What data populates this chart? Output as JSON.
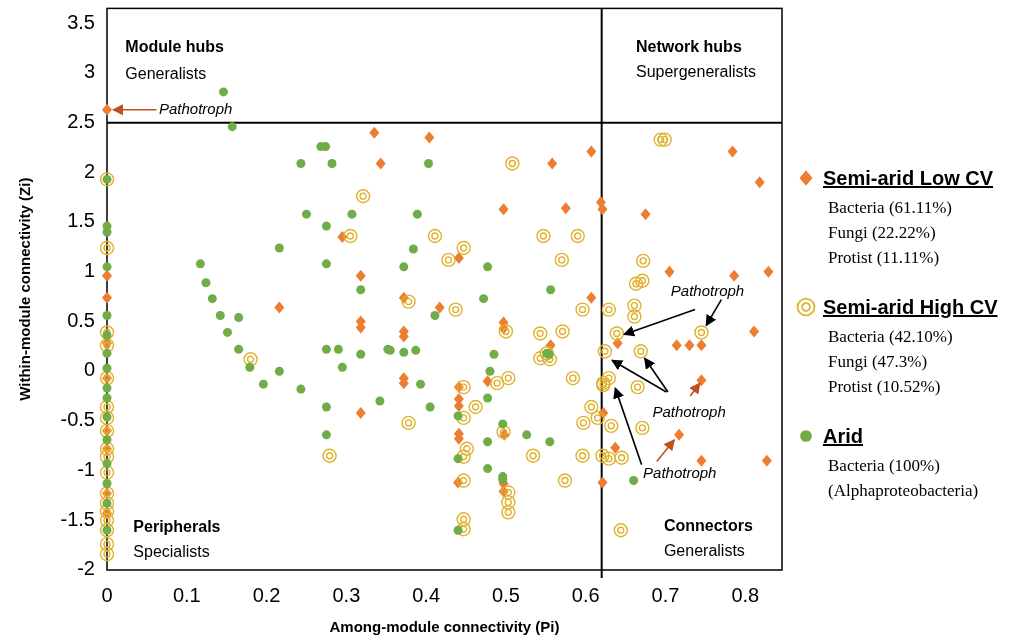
{
  "chart_data": {
    "type": "scatter",
    "xlabel": "Among-module connectivity (Pi)",
    "ylabel": "Within-module connectivity (Zi)",
    "xlim": [
      0,
      0.846
    ],
    "ylim": [
      -2,
      3.65
    ],
    "xticks": [
      0,
      0.1,
      0.2,
      0.3,
      0.4,
      0.5,
      0.6,
      0.7,
      0.8
    ],
    "yticks": [
      -2,
      -1.5,
      -1,
      -0.5,
      0,
      0.5,
      1,
      1.5,
      2,
      2.5,
      3,
      3.5
    ],
    "legend": "right",
    "grid": false,
    "ref_lines": [
      {
        "axis": "x",
        "value": 0.62,
        "color": "#000000"
      },
      {
        "axis": "y",
        "value": 2.5,
        "color": "#000000"
      }
    ],
    "series": [
      {
        "name": "Semi-arid Low CV",
        "color": "#ed7d31",
        "x": [
          0,
          0.335,
          0.343,
          0.295,
          0.318,
          0.216,
          0,
          0,
          0.404,
          0.558,
          0.607,
          0.784,
          0.818,
          0.497,
          0.575,
          0.619,
          0.621,
          0.675,
          0.441,
          0.705,
          0.786,
          0.829,
          0.372,
          0.417,
          0.607,
          0.372,
          0.372,
          0.497,
          0.497,
          0.556,
          0.372,
          0.372,
          0.477,
          0.441,
          0.745,
          0.811,
          0.714,
          0.73,
          0.745,
          0.64,
          0.441,
          0.441,
          0.622,
          0.498,
          0.441,
          0.441,
          0.637,
          0.717,
          0.745,
          0.827,
          0.497,
          0.497,
          0.44,
          0.621,
          0.318,
          0.318,
          0.318,
          0,
          0,
          0,
          0,
          0,
          0
        ],
        "values": [
          2.63,
          2.4,
          2.09,
          1.35,
          0.96,
          0.64,
          0.96,
          0.74,
          2.35,
          2.09,
          2.21,
          2.21,
          1.9,
          1.63,
          1.64,
          1.7,
          1.63,
          1.58,
          1.14,
          1,
          0.96,
          1,
          0.74,
          0.64,
          0.74,
          0.4,
          0.35,
          0.49,
          0.43,
          0.26,
          -0.07,
          -0.12,
          -0.1,
          -0.16,
          -0.09,
          0.4,
          0.26,
          0.26,
          0.26,
          0.28,
          -0.28,
          -0.35,
          -0.42,
          -0.64,
          -0.63,
          -0.68,
          -0.77,
          -0.64,
          -0.9,
          -0.9,
          -1.13,
          -1.21,
          -1.12,
          -1.12,
          0.5,
          0.44,
          -0.42,
          0.28,
          -0.07,
          -0.6,
          -0.78,
          -1.23,
          -1.43
        ]
      },
      {
        "name": "Semi-arid High CV",
        "color": "#e0b22e",
        "x": [
          0,
          0,
          0.321,
          0.305,
          0.508,
          0.694,
          0.699,
          0.411,
          0.447,
          0.428,
          0.547,
          0.59,
          0.57,
          0.672,
          0.663,
          0.671,
          0.378,
          0.437,
          0.596,
          0.629,
          0.661,
          0.661,
          0.5,
          0.543,
          0.571,
          0.543,
          0.551,
          0.555,
          0.489,
          0.503,
          0.447,
          0.584,
          0.622,
          0.622,
          0.629,
          0.665,
          0.639,
          0.745,
          0.624,
          0.669,
          0.462,
          0.447,
          0.378,
          0.607,
          0.597,
          0.615,
          0.632,
          0.671,
          0.497,
          0.451,
          0.447,
          0.534,
          0.596,
          0.621,
          0.629,
          0.645,
          0.503,
          0.503,
          0.503,
          0.447,
          0.574,
          0.447,
          0.447,
          0.644,
          0.18,
          0.279,
          0,
          0,
          0,
          0,
          0,
          0,
          0,
          0,
          0,
          0,
          0,
          0,
          0,
          0,
          0,
          0
        ],
        "values": [
          1.93,
          1.24,
          1.76,
          1.36,
          2.09,
          2.33,
          2.33,
          1.36,
          1.24,
          1.12,
          1.36,
          1.36,
          1.12,
          1.11,
          0.88,
          0.91,
          0.7,
          0.62,
          0.62,
          0.62,
          0.66,
          0.55,
          0.4,
          0.38,
          0.4,
          0.13,
          0.18,
          0.12,
          -0.12,
          -0.07,
          -0.16,
          -0.07,
          -0.12,
          -0.14,
          -0.07,
          -0.16,
          0.38,
          0.39,
          0.2,
          0.2,
          -0.36,
          -0.47,
          -0.52,
          -0.36,
          -0.52,
          -0.47,
          -0.55,
          -0.57,
          -0.61,
          -0.78,
          -0.86,
          -0.85,
          -0.85,
          -0.85,
          -0.88,
          -0.87,
          -1.22,
          -1.32,
          -1.42,
          -1.1,
          -1.1,
          -1.49,
          -1.59,
          -1.6,
          0.12,
          -0.85,
          0.39,
          0.26,
          -0.07,
          -0.36,
          -0.47,
          -0.6,
          -0.78,
          -0.86,
          -1.02,
          -1.23,
          -1.33,
          -1.41,
          -1.5,
          -1.6,
          -1.74,
          -1.84
        ]
      },
      {
        "name": "Arid",
        "color": "#70ad47",
        "x": [
          0.146,
          0.157,
          0,
          0.268,
          0.274,
          0.243,
          0.282,
          0.25,
          0.307,
          0.275,
          0.216,
          0.117,
          0.275,
          0.318,
          0.124,
          0.132,
          0.142,
          0.165,
          0,
          0,
          0,
          0,
          0.403,
          0.389,
          0.384,
          0.372,
          0.477,
          0.556,
          0.472,
          0.411,
          0.355,
          0.372,
          0.387,
          0.485,
          0.48,
          0.551,
          0.554,
          0.393,
          0.405,
          0.477,
          0.44,
          0.496,
          0.526,
          0.555,
          0.477,
          0.44,
          0.477,
          0.496,
          0.496,
          0.66,
          0.44,
          0.151,
          0.165,
          0.179,
          0.216,
          0.196,
          0.243,
          0.275,
          0.29,
          0.295,
          0.318,
          0.352,
          0.275,
          0.342,
          0.275,
          0,
          0,
          0,
          0,
          0,
          0,
          0,
          0,
          0,
          0,
          0
        ],
        "values": [
          2.81,
          2.46,
          1.93,
          2.26,
          2.26,
          2.09,
          2.09,
          1.58,
          1.58,
          1.46,
          1.24,
          1.08,
          1.08,
          0.82,
          0.89,
          0.73,
          0.56,
          0.54,
          1.46,
          1.4,
          1.05,
          0.56,
          2.09,
          1.58,
          1.23,
          1.05,
          1.05,
          0.82,
          0.73,
          0.56,
          0.21,
          0.19,
          0.21,
          0.17,
          0,
          0.18,
          0.17,
          -0.13,
          -0.36,
          -0.27,
          -0.45,
          -0.53,
          -0.64,
          -0.71,
          -0.71,
          -0.88,
          -0.98,
          -1.06,
          -1.09,
          -1.1,
          -1.6,
          0.39,
          0.22,
          0.04,
          0,
          -0.13,
          -0.18,
          0.22,
          0.22,
          0.04,
          0.17,
          0.22,
          -0.36,
          -0.3,
          -0.64,
          0.36,
          0.18,
          0.03,
          -0.17,
          -0.27,
          -0.46,
          -0.69,
          -0.93,
          -1.13,
          -1.33,
          -1.6
        ]
      }
    ],
    "annotations": [
      "Module hubs",
      "Generalists",
      "Network hubs",
      "Supergeneralists",
      "Peripherals",
      "Specialists",
      "Connectors",
      "Generalists",
      {
        "text": "Pathotroph",
        "x": 0,
        "y": 2.63
      },
      {
        "text": "Pathotroph",
        "x": 0.639,
        "y": 0.38
      },
      {
        "text": "Pathotroph",
        "x": 0.745,
        "y": -0.09
      },
      {
        "text": "Pathotroph",
        "x": 0.717,
        "y": -0.64
      },
      "Bacteria (61.11%)",
      "Fungi (22.22%)",
      "Protist (11.11%)",
      "Bacteria (42.10%)",
      "Fungi (47.3%)",
      "Protist (10.52%)",
      "Bacteria (100%)",
      "(Alphaproteobacteria)"
    ]
  }
}
